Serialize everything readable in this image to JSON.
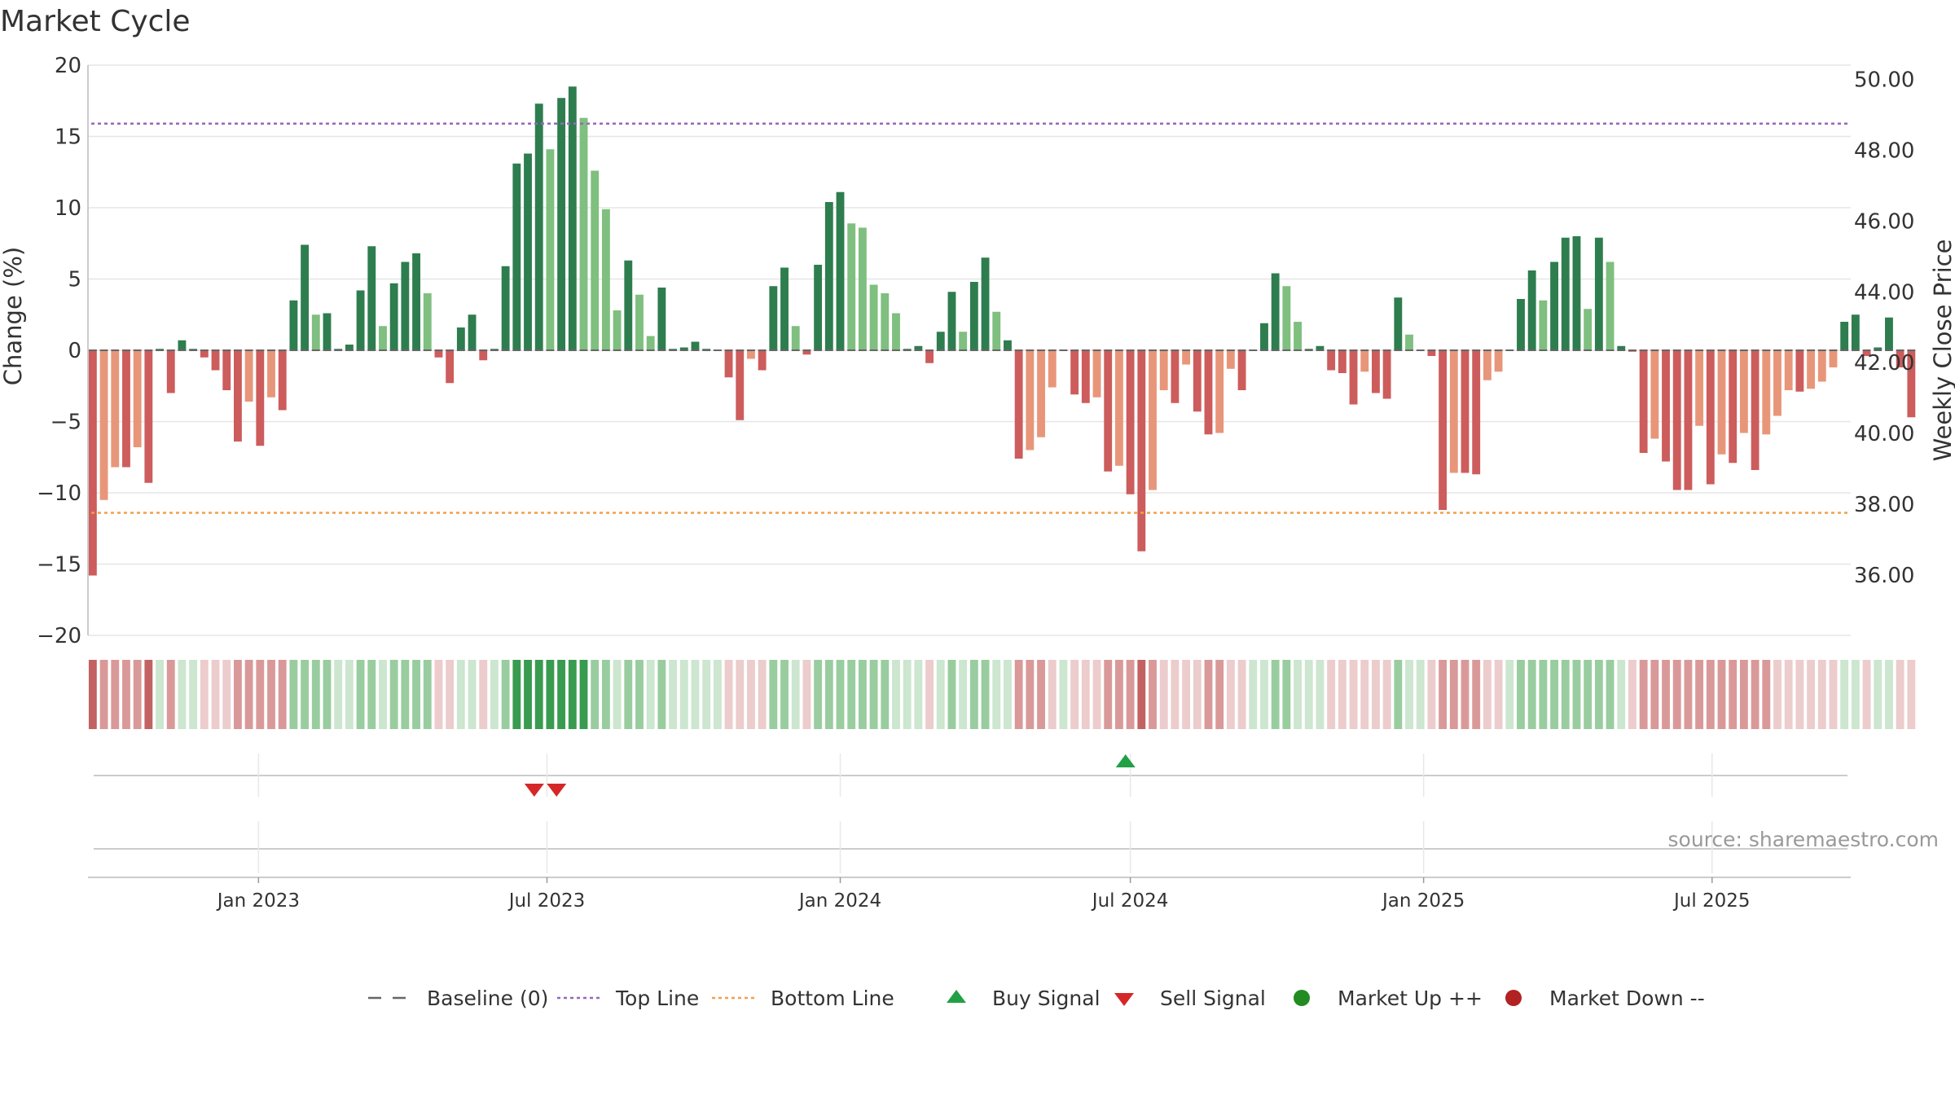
{
  "chart_data": {
    "type": "bar",
    "title": "Market Cycle",
    "ylabel": "Change (%)",
    "ylabel_right": "Weekly Close Price",
    "ylim": [
      -20,
      20
    ],
    "yticks": [
      20,
      15,
      10,
      5,
      0,
      -5,
      -10,
      -15,
      -20
    ],
    "ylim_right": [
      34.3,
      50.4
    ],
    "yticks_right": [
      "50.00",
      "48.00",
      "46.00",
      "44.00",
      "42.00",
      "40.00",
      "38.00",
      "36.00"
    ],
    "x_start": "2022-09-19",
    "x_range": [
      "2022-09-16",
      "2025-09-26"
    ],
    "xticks": [
      {
        "date": "2023-01-01",
        "label": "Jan 2023"
      },
      {
        "date": "2023-07-01",
        "label": "Jul 2023"
      },
      {
        "date": "2024-01-01",
        "label": "Jan 2024"
      },
      {
        "date": "2024-07-01",
        "label": "Jul 2024"
      },
      {
        "date": "2025-01-01",
        "label": "Jan 2025"
      },
      {
        "date": "2025-07-01",
        "label": "Jul 2025"
      }
    ],
    "top_line": 15.9,
    "bottom_line": -11.4,
    "weekly_change": [
      -15.8,
      -10.5,
      -8.2,
      -8.2,
      -6.8,
      -9.3,
      0.1,
      -3.0,
      0.7,
      0.1,
      -0.5,
      -1.4,
      -2.8,
      -6.4,
      -3.6,
      -6.7,
      -3.3,
      -4.2,
      3.5,
      7.4,
      2.5,
      2.6,
      0.1,
      0.4,
      4.2,
      7.3,
      1.7,
      4.7,
      6.2,
      6.8,
      4.0,
      -0.5,
      -2.3,
      1.6,
      2.5,
      -0.7,
      0.1,
      5.9,
      13.1,
      13.8,
      17.3,
      14.1,
      17.7,
      18.5,
      16.3,
      12.6,
      9.9,
      2.8,
      6.3,
      3.9,
      1.0,
      4.4,
      0.1,
      0.2,
      0.6,
      0.1,
      0.0,
      -1.9,
      -4.9,
      -0.6,
      -1.4,
      4.5,
      5.8,
      1.7,
      -0.3,
      6.0,
      10.4,
      11.1,
      8.9,
      8.6,
      4.6,
      4.0,
      2.6,
      0.1,
      0.3,
      -0.9,
      1.3,
      4.1,
      1.3,
      4.8,
      6.5,
      2.7,
      0.7,
      -7.6,
      -7.0,
      -6.1,
      -2.6,
      0.0,
      -3.1,
      -3.7,
      -3.3,
      -8.5,
      -8.1,
      -10.1,
      -14.1,
      -9.8,
      -2.8,
      -3.7,
      -1.0,
      -4.3,
      -5.9,
      -5.8,
      -1.3,
      -2.8,
      0.0,
      1.9,
      5.4,
      4.5,
      2.0,
      0.1,
      0.3,
      -1.4,
      -1.6,
      -3.8,
      -1.5,
      -3.0,
      -3.4,
      3.7,
      1.1,
      0.0,
      -0.4,
      -11.2,
      -8.6,
      -8.6,
      -8.7,
      -2.1,
      -1.5,
      0.0,
      3.6,
      5.6,
      3.5,
      6.2,
      7.9,
      8.0,
      2.9,
      7.9,
      6.2,
      0.3,
      -0.1,
      -7.2,
      -6.2,
      -7.8,
      -9.8,
      -9.8,
      -5.3,
      -9.4,
      -7.3,
      -7.9,
      -5.8,
      -8.4,
      -5.9,
      -4.6,
      -2.8,
      -2.9,
      -2.7,
      -2.2,
      -1.2,
      2.0,
      2.5,
      -0.4,
      0.2,
      2.3,
      -1.2,
      -4.7
    ],
    "market_phase": [
      -3,
      -2,
      -2,
      -2,
      -2,
      -3,
      1,
      -2,
      1,
      1,
      -1,
      -1,
      -1,
      -2,
      -2,
      -2,
      -2,
      -2,
      2,
      2,
      2,
      2,
      1,
      1,
      2,
      2,
      1,
      2,
      2,
      2,
      2,
      -1,
      -1,
      1,
      1,
      -1,
      1,
      2,
      3,
      3,
      3,
      3,
      3,
      3,
      3,
      2,
      2,
      1,
      2,
      2,
      1,
      2,
      1,
      1,
      1,
      1,
      1,
      -1,
      -1,
      -1,
      -1,
      2,
      2,
      1,
      -1,
      2,
      2,
      2,
      2,
      2,
      2,
      2,
      1,
      1,
      1,
      -1,
      1,
      2,
      1,
      2,
      2,
      1,
      1,
      -2,
      -2,
      -2,
      -1,
      1,
      -1,
      -1,
      -1,
      -2,
      -2,
      -2,
      -3,
      -2,
      -1,
      -1,
      -1,
      -1,
      -2,
      -2,
      -1,
      -1,
      1,
      1,
      2,
      2,
      1,
      1,
      1,
      -1,
      -1,
      -1,
      -1,
      -1,
      -1,
      2,
      1,
      1,
      -1,
      -2,
      -2,
      -2,
      -2,
      -1,
      -1,
      1,
      2,
      2,
      2,
      2,
      2,
      2,
      2,
      2,
      2,
      1,
      -1,
      -2,
      -2,
      -2,
      -2,
      -2,
      -2,
      -2,
      -2,
      -2,
      -2,
      -2,
      -2,
      -1,
      -1,
      -1,
      -1,
      -1,
      -1,
      1,
      1,
      -1,
      1,
      1,
      -1,
      -1
    ],
    "buy_signals": [
      "2024-06-28"
    ],
    "sell_signals": [
      "2023-06-23",
      "2023-07-07"
    ],
    "colors": {
      "up_strong": "#2e7d4f",
      "up_weak": "#7fbf7f",
      "down_strong": "#cd5c5c",
      "down_weak": "#e8967a",
      "top_line": "#9467bd",
      "bottom_line": "#f0a04b",
      "baseline": "#666666",
      "buy": "#22a046",
      "sell": "#d62728",
      "market_up": "#228b22",
      "market_down": "#b22222",
      "grid": "#e6e6e6"
    },
    "source_text": "source: sharemaestro.com",
    "legend": [
      {
        "label": "Baseline (0)",
        "symbol": "dash-line"
      },
      {
        "label": "Top Line",
        "symbol": "dot-line-purple"
      },
      {
        "label": "Bottom Line",
        "symbol": "dot-line-orange"
      },
      {
        "label": "Buy Signal",
        "symbol": "triangle-up"
      },
      {
        "label": "Sell Signal",
        "symbol": "triangle-down"
      },
      {
        "label": "Market Up ++",
        "symbol": "dot-green"
      },
      {
        "label": "Market Down --",
        "symbol": "dot-red"
      }
    ]
  }
}
